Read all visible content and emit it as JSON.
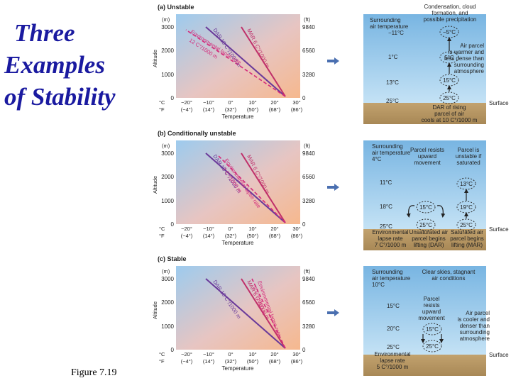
{
  "title_lines": [
    "Three",
    "Examples",
    "of Stability"
  ],
  "caption": "Figure  7.19",
  "colors": {
    "title": "#1a1aa0",
    "dar": "#6a3a9a",
    "mar": "#c0306a",
    "env": "#d42a7a",
    "arrow": "#4a6fb0",
    "sky": "#9cc8ea",
    "ground": "#b89a6a"
  },
  "panels": [
    {
      "id": "unstable",
      "label": "(a) Unstable",
      "chart": {
        "unit_m": "(m)",
        "unit_ft": "(ft)",
        "alt_m": [
          "3000",
          "2000",
          "1000",
          "0"
        ],
        "alt_ft": [
          "9840",
          "6560",
          "3280",
          "0"
        ],
        "c_row": [
          "°C",
          "−20°",
          "−10°",
          "0°",
          "10°",
          "20°",
          "30°"
        ],
        "f_row": [
          "°F",
          "(−4°)",
          "(14°)",
          "(32°)",
          "(50°)",
          "(68°)",
          "(86°)"
        ],
        "ylabel": "Altitude",
        "xlabel": "Temperature",
        "dar_label": "DAR 10 C°/1000 m",
        "mar_label": "MAR 6 C°/1000 m",
        "env_label_1": "Environmental lapse rate",
        "env_label_2": "12 C°/1000 m"
      },
      "scene": {
        "surface": "Surface",
        "left_header": [
          "Surrounding",
          "air temperature"
        ],
        "left_temps": [
          "−11°C",
          "1°C",
          "13°C",
          "25°C"
        ],
        "top_note": [
          "Condensation, cloud",
          "formation, and",
          "possible precipitation"
        ],
        "parcel_temps": [
          "−5°C",
          "5°C",
          "15°C",
          "25°C"
        ],
        "right_note": [
          "Air parcel",
          "is warmer and",
          "less dense than",
          "surrounding",
          "atmosphere"
        ],
        "bottom_note": [
          "DAR of rising",
          "parcel of air",
          "cools at 10 C°/1000 m"
        ]
      }
    },
    {
      "id": "conditional",
      "label": "(b) Conditionally unstable",
      "chart": {
        "unit_m": "(m)",
        "unit_ft": "(ft)",
        "alt_m": [
          "3000",
          "2000",
          "1000",
          "0"
        ],
        "alt_ft": [
          "9840",
          "6560",
          "3280",
          "0"
        ],
        "c_row": [
          "°C",
          "−20°",
          "−10°",
          "0°",
          "10°",
          "20°",
          "30°"
        ],
        "f_row": [
          "°F",
          "(−4°)",
          "(14°)",
          "(32°)",
          "(50°)",
          "(68°)",
          "(86°)"
        ],
        "ylabel": "Altitude",
        "xlabel": "Temperature",
        "dar_label": "DAR 10 C°/1000 m",
        "mar_label": "MAR 6 C°/1000 m",
        "env_label_1": "Environmental lapse rate",
        "env_label_2": "7 C°/1000 m"
      },
      "scene": {
        "surface": "Surface",
        "left_header": [
          "Surrounding",
          "air temperature",
          "4°C"
        ],
        "left_temps": [
          "11°C",
          "18°C",
          "25°C"
        ],
        "mid_note": [
          "Parcel resists",
          "upward",
          "movement"
        ],
        "right_top_note": [
          "Parcel is",
          "unstable if",
          "saturated"
        ],
        "parcel_a": [
          "15°C",
          "25°C"
        ],
        "parcel_b": [
          "13°C",
          "19°C",
          "25°C"
        ],
        "bottom_left": [
          "Environmental",
          "lapse rate",
          "7 C°/1000 m"
        ],
        "bottom_mid": [
          "Unsaturated air",
          "parcel begins",
          "lifting (DAR)"
        ],
        "bottom_right": [
          "Saturated air",
          "parcel begins",
          "lifting (MAR)"
        ]
      }
    },
    {
      "id": "stable",
      "label": "(c) Stable",
      "chart": {
        "unit_m": "(m)",
        "unit_ft": "(ft)",
        "alt_m": [
          "3000",
          "2000",
          "1000",
          "0"
        ],
        "alt_ft": [
          "9840",
          "6560",
          "3280",
          "0"
        ],
        "c_row": [
          "°C",
          "−20°",
          "−10°",
          "0°",
          "10°",
          "20°",
          "30°"
        ],
        "f_row": [
          "°F",
          "(−4°)",
          "(14°)",
          "(32°)",
          "(50°)",
          "(68°)",
          "(86°)"
        ],
        "ylabel": "Altitude",
        "xlabel": "Temperature",
        "dar_label": "DAR 10 C°/1000 m",
        "mar_label": "MAR 6 C°/1000 m",
        "env_label_1": "Environmental lapse rate",
        "env_label_2": "5 C°/1000 m"
      },
      "scene": {
        "surface": "Surface",
        "left_header": [
          "Surrounding",
          "air temperature",
          "10°C"
        ],
        "left_temps": [
          "15°C",
          "20°C",
          "25°C"
        ],
        "top_note": [
          "Clear skies, stagnant",
          "air conditions"
        ],
        "mid_note": [
          "Parcel",
          "resists",
          "upward",
          "movement"
        ],
        "parcel_temps": [
          "15°C",
          "25°C"
        ],
        "right_note": [
          "Air parcel",
          "is cooler and",
          "denser than",
          "surrounding",
          "atmosphere"
        ],
        "bottom_left": [
          "Environmental",
          "lapse rate",
          "5 C°/1000 m"
        ]
      }
    }
  ]
}
